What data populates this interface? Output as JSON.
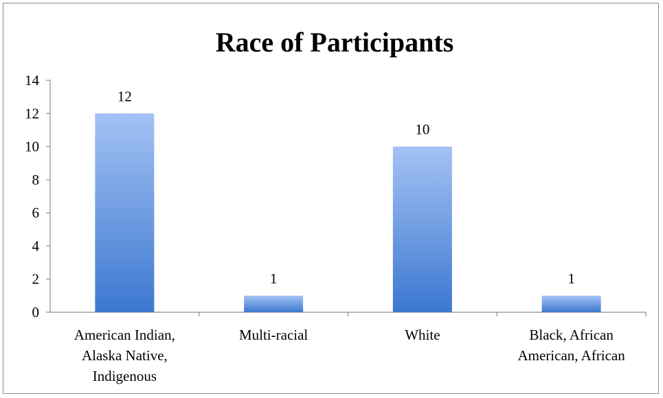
{
  "chart_data": {
    "type": "bar",
    "title": "Race of Participants",
    "categories": [
      [
        "American Indian,",
        "Alaska Native,",
        "Indigenous"
      ],
      [
        "Multi-racial"
      ],
      [
        "White"
      ],
      [
        "Black, African",
        "American, African"
      ]
    ],
    "values": [
      12,
      1,
      10,
      1
    ],
    "data_labels": [
      "12",
      "1",
      "10",
      "1"
    ],
    "ylim": [
      0,
      14
    ],
    "yticks": [
      "0",
      "2",
      "4",
      "6",
      "8",
      "10",
      "12",
      "14"
    ],
    "xlabel": "",
    "ylabel": "",
    "grid": false,
    "legend": "none",
    "colors": {
      "bar_top": "#a4c2f4",
      "bar_bottom": "#3c78d0",
      "axis": "#8c8c8c",
      "frame": "#8c8c8c"
    }
  }
}
